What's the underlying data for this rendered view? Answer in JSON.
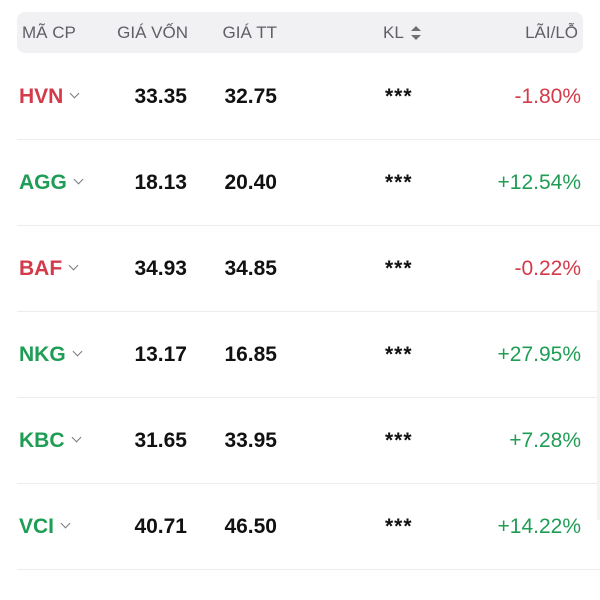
{
  "header": {
    "code": "MÃ CP",
    "cost": "GIÁ VỐN",
    "price": "GIÁ TT",
    "volume": "KL",
    "pl": "LÃI/LỖ"
  },
  "colors": {
    "loss": "#d33a4a",
    "gain": "#1f9d55"
  },
  "rows": [
    {
      "code": "HVN",
      "cost": "33.35",
      "price": "32.75",
      "volume": "***",
      "pl": "-1.80%",
      "trend": "loss"
    },
    {
      "code": "AGG",
      "cost": "18.13",
      "price": "20.40",
      "volume": "***",
      "pl": "+12.54%",
      "trend": "gain"
    },
    {
      "code": "BAF",
      "cost": "34.93",
      "price": "34.85",
      "volume": "***",
      "pl": "-0.22%",
      "trend": "loss"
    },
    {
      "code": "NKG",
      "cost": "13.17",
      "price": "16.85",
      "volume": "***",
      "pl": "+27.95%",
      "trend": "gain"
    },
    {
      "code": "KBC",
      "cost": "31.65",
      "price": "33.95",
      "volume": "***",
      "pl": "+7.28%",
      "trend": "gain"
    },
    {
      "code": "VCI",
      "cost": "40.71",
      "price": "46.50",
      "volume": "***",
      "pl": "+14.22%",
      "trend": "gain"
    }
  ]
}
